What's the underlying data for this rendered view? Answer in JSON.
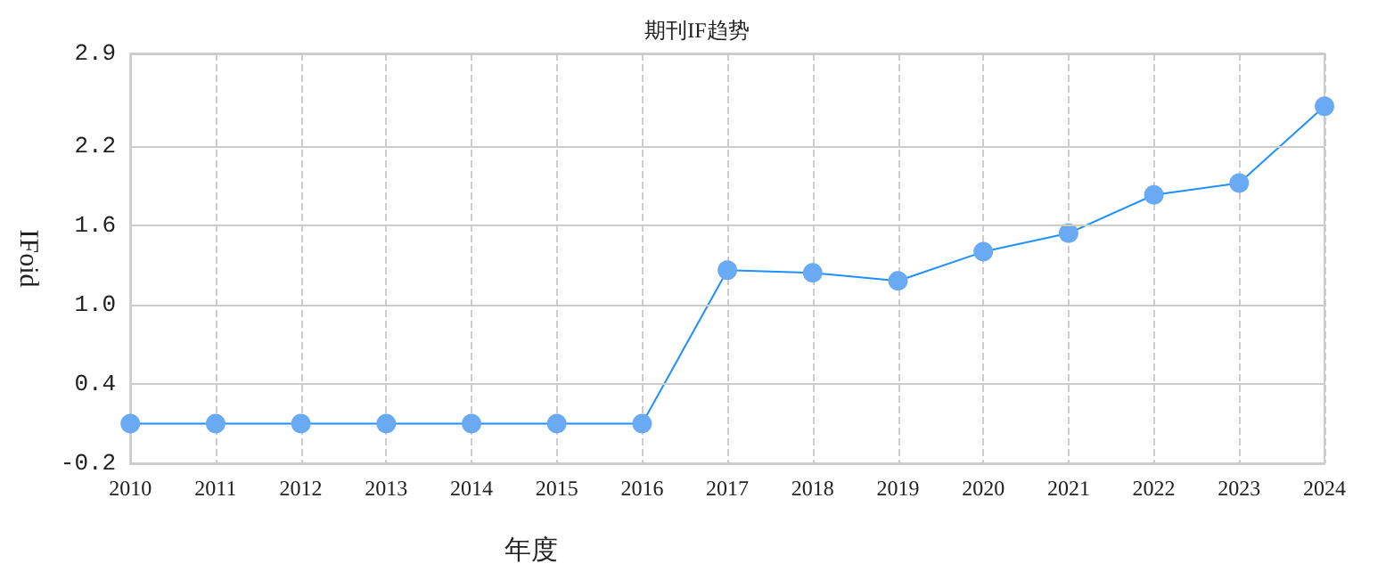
{
  "chart_data": {
    "type": "line",
    "title": "期刊IF趋势",
    "xlabel": "年度",
    "ylabel": "IFoid",
    "categories": [
      "2010",
      "2011",
      "2012",
      "2013",
      "2014",
      "2015",
      "2016",
      "2017",
      "2018",
      "2019",
      "2020",
      "2021",
      "2022",
      "2023",
      "2024"
    ],
    "series": [
      {
        "color": "#1e90ff",
        "values": [
          0.1,
          0.1,
          0.1,
          0.1,
          0.1,
          0.1,
          0.1,
          1.26,
          1.24,
          1.18,
          1.4,
          1.54,
          1.83,
          1.92,
          2.5
        ]
      }
    ],
    "ylim": [
      -0.2,
      2.9
    ],
    "yticks": [
      -0.2,
      0.4,
      {
        "value": 1.0,
        "label": "1.0"
      },
      1.6,
      2.2,
      2.9
    ],
    "grid": true,
    "marker": "circle",
    "line_style": "solid"
  }
}
